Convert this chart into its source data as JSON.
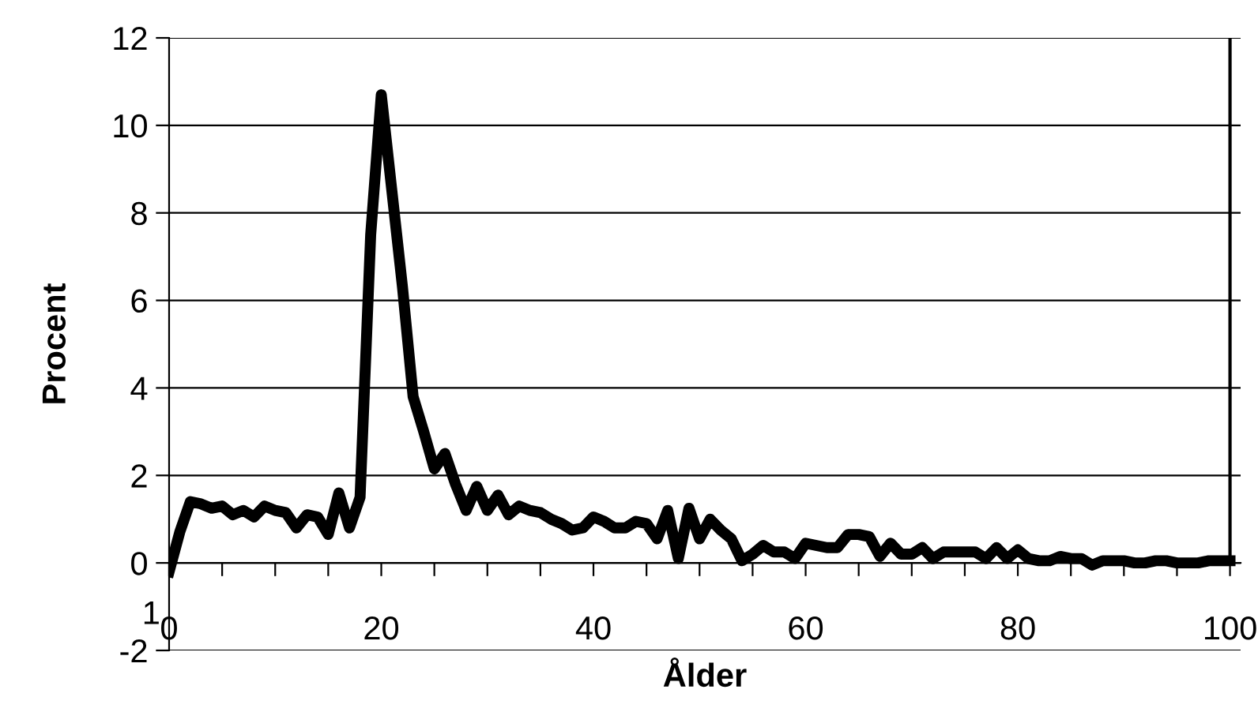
{
  "chart_data": {
    "type": "line",
    "xlabel": "Ålder",
    "ylabel": "Procent",
    "x": [
      0,
      1,
      2,
      3,
      4,
      5,
      6,
      7,
      8,
      9,
      10,
      11,
      12,
      13,
      14,
      15,
      16,
      17,
      18,
      19,
      20,
      21,
      22,
      23,
      24,
      25,
      26,
      27,
      28,
      29,
      30,
      31,
      32,
      33,
      34,
      35,
      36,
      37,
      38,
      39,
      40,
      41,
      42,
      43,
      44,
      45,
      46,
      47,
      48,
      49,
      50,
      51,
      52,
      53,
      54,
      55,
      56,
      57,
      58,
      59,
      60,
      61,
      62,
      63,
      64,
      65,
      66,
      67,
      68,
      69,
      70,
      71,
      72,
      73,
      74,
      75,
      76,
      77,
      78,
      79,
      80,
      81,
      82,
      83,
      84,
      85,
      86,
      87,
      88,
      89,
      90,
      91,
      92,
      93,
      94,
      95,
      96,
      97,
      98,
      99,
      100
    ],
    "series": [
      {
        "color": "#000000",
        "values": [
          -0.2,
          0.7,
          1.4,
          1.35,
          1.25,
          1.3,
          1.1,
          1.2,
          1.05,
          1.3,
          1.2,
          1.15,
          0.8,
          1.1,
          1.05,
          0.65,
          1.6,
          0.8,
          1.5,
          7.5,
          10.7,
          8.5,
          6.3,
          3.8,
          3.0,
          2.15,
          2.5,
          1.8,
          1.2,
          1.75,
          1.2,
          1.55,
          1.1,
          1.3,
          1.2,
          1.15,
          1.0,
          0.9,
          0.75,
          0.8,
          1.05,
          0.95,
          0.8,
          0.8,
          0.95,
          0.9,
          0.55,
          1.2,
          0.1,
          1.25,
          0.55,
          1.0,
          0.75,
          0.55,
          0.05,
          0.2,
          0.4,
          0.25,
          0.25,
          0.1,
          0.45,
          0.4,
          0.35,
          0.35,
          0.65,
          0.65,
          0.6,
          0.15,
          0.45,
          0.2,
          0.2,
          0.35,
          0.1,
          0.25,
          0.25,
          0.25,
          0.25,
          0.1,
          0.35,
          0.1,
          0.3,
          0.1,
          0.05,
          0.05,
          0.15,
          0.1,
          0.1,
          -0.05,
          0.05,
          0.05,
          0.05,
          0.0,
          0.0,
          0.05,
          0.05,
          0.0,
          0.0,
          0.0,
          0.05,
          0.05,
          0.05
        ]
      }
    ],
    "xlim": [
      0,
      101
    ],
    "xticks": [
      0,
      {
        "value": 5,
        "label": null
      },
      {
        "value": 10,
        "label": null
      },
      {
        "value": 15,
        "label": null
      },
      20,
      {
        "value": 25,
        "label": null
      },
      {
        "value": 30,
        "label": null
      },
      {
        "value": 35,
        "label": null
      },
      40,
      {
        "value": 45,
        "label": null
      },
      {
        "value": 50,
        "label": null
      },
      {
        "value": 55,
        "label": null
      },
      60,
      {
        "value": 65,
        "label": null
      },
      {
        "value": 70,
        "label": null
      },
      {
        "value": 75,
        "label": null
      },
      80,
      {
        "value": 85,
        "label": null
      },
      {
        "value": 90,
        "label": null
      },
      {
        "value": 95,
        "label": null
      },
      100
    ],
    "ylim": [
      -2,
      12
    ],
    "yticks": [
      -2,
      0,
      2,
      4,
      6,
      8,
      10,
      12
    ],
    "grid": "y",
    "legend": false,
    "marker": "none",
    "line_style": "solid",
    "ref_lines": [
      {
        "axis": "x",
        "value": 100,
        "color": "#000000"
      }
    ],
    "annotations": [
      "1"
    ]
  }
}
